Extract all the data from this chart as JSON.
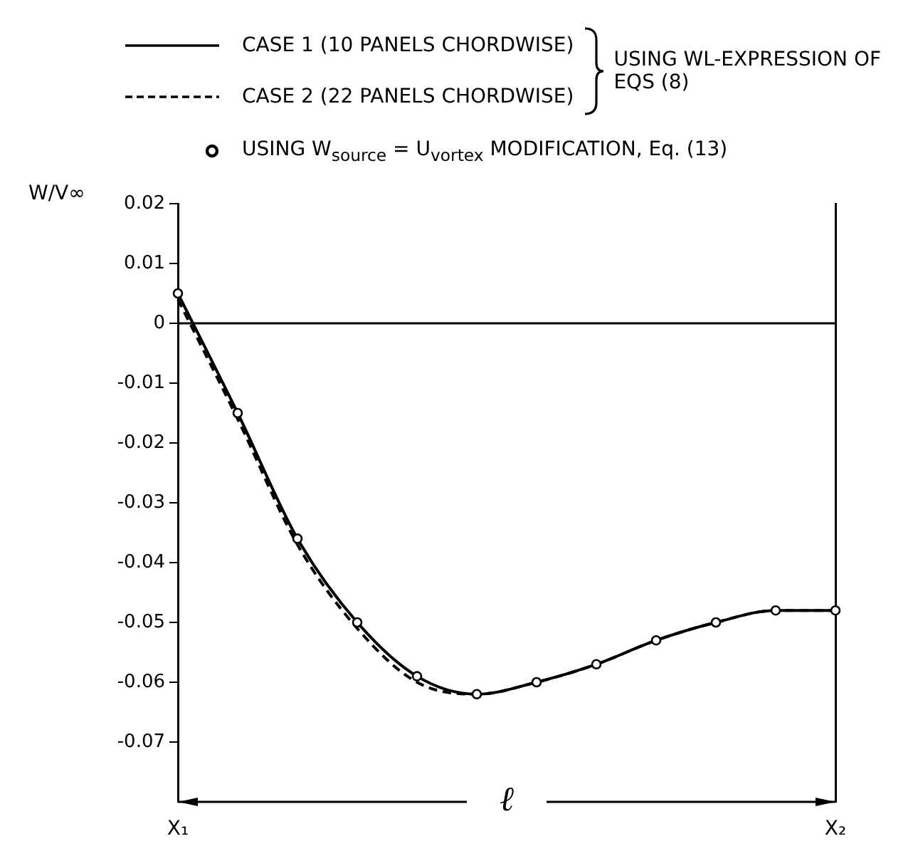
{
  "chart_data": {
    "type": "line",
    "ylabel": "W/V∞",
    "legend_title": "USING WL-EXPRESSION OF EQS (8)",
    "annotations": [
      "ℓ"
    ],
    "categories": [
      "X₁",
      null,
      null,
      null,
      null,
      null,
      null,
      null,
      null,
      null,
      null,
      "X₂"
    ],
    "ylim": [
      -0.08,
      0.02
    ],
    "yticks": [
      0.02,
      0.01,
      0,
      -0.01,
      -0.02,
      -0.03,
      -0.04,
      -0.05,
      -0.06,
      -0.07
    ],
    "grid": false,
    "legend": "top",
    "ref_lines": [
      {
        "axis": "y",
        "value": 0,
        "color": "#000000"
      }
    ],
    "series": [
      {
        "name": "CASE 1 (10 PANELS CHORDWISE)",
        "color": "#000000",
        "line_style": "solid",
        "marker": "none",
        "values": [
          0.005,
          -0.015,
          -0.036,
          -0.05,
          -0.059,
          -0.062,
          -0.06,
          -0.057,
          -0.053,
          -0.05,
          -0.048,
          -0.048
        ]
      },
      {
        "name": "CASE 2 (22 PANELS CHORDWISE)",
        "color": "#000000",
        "line_style": "dashed",
        "marker": "none",
        "values": [
          0.004,
          -0.016,
          -0.037,
          -0.051,
          -0.06,
          -0.062,
          -0.06,
          -0.057,
          -0.053,
          -0.05,
          -0.048,
          -0.048
        ]
      },
      {
        "name": "USING W$_{source}$ = U$_{vortex}$ MODIFICATION, Eq. (13)",
        "type": "scatter",
        "color": "#000000",
        "marker": "circle",
        "values": [
          0.005,
          -0.015,
          -0.036,
          -0.05,
          -0.059,
          -0.062,
          -0.06,
          -0.057,
          -0.053,
          -0.05,
          -0.048,
          -0.048
        ]
      }
    ]
  }
}
